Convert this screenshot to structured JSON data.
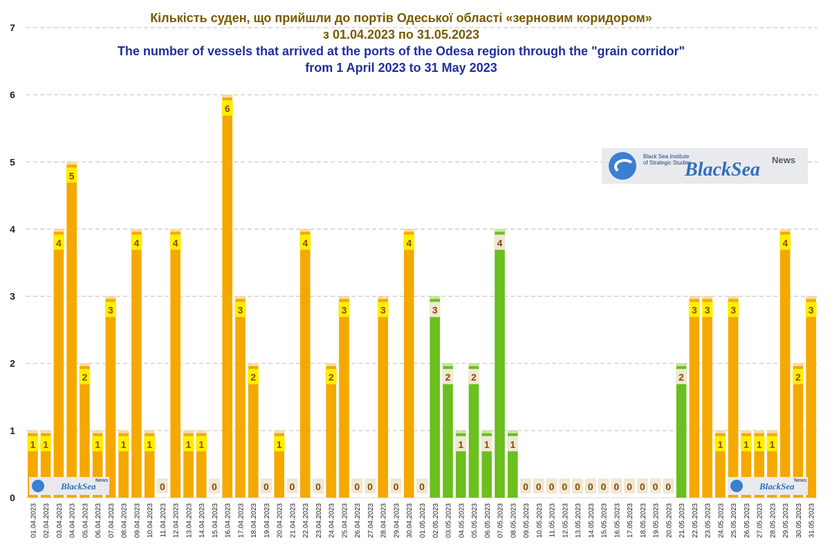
{
  "chart_data": {
    "type": "bar",
    "title_uk_line1": "Кількість суден, що прийшли до  портів Одеської області «зерновим коридором»",
    "title_uk_line2": "з 01.04.2023 по 31.05.2023",
    "title_en_line1": "The number of vessels that arrived at the ports of the Odesa region through the \"grain corridor\"",
    "title_en_line2": "from 1 April 2023 to 31 May 2023",
    "xlabel": "",
    "ylabel": "",
    "ylim": [
      0,
      7
    ],
    "yticks": [
      "0",
      "1",
      "2",
      "3",
      "4",
      "5",
      "6",
      "7"
    ],
    "grid": true,
    "categories": [
      "01.04.2023",
      "02.04.2023",
      "03.04.2023",
      "04.04.2023",
      "05.04.2023",
      "06.04.2023",
      "07.04.2023",
      "08.04.2023",
      "09.04.2023",
      "10.04.2023",
      "11.04.2023",
      "12.04.2023",
      "13.04.2023",
      "14.04.2023",
      "15.04.2023",
      "16.04.2023",
      "17.04.2023",
      "18.04.2023",
      "19.04.2023",
      "20.04.2023",
      "21.04.2023",
      "22.04.2023",
      "23.04.2023",
      "24.04.2023",
      "25.04.2023",
      "26.04.2023",
      "27.04.2023",
      "28.04.2023",
      "29.04.2023",
      "30.04.2023",
      "01.05.2023",
      "02.05.2023",
      "03.05.2023",
      "04.05.2023",
      "05.05.2023",
      "06.05.2023",
      "07.05.2023",
      "08.05.2023",
      "09.05.2023",
      "10.05.2023",
      "11.05.2023",
      "12.05.2023",
      "13.05.2023",
      "14.05.2023",
      "15.05.2023",
      "16.05.2023",
      "17.05.2023",
      "18.05.2023",
      "19.05.2023",
      "20.05.2023",
      "21.05.2023",
      "22.05.2023",
      "23.05.2023",
      "24.05.2023",
      "25.05.2023",
      "26.05.2023",
      "27.05.2023",
      "28.05.2023",
      "29.05.2023",
      "30.05.2023",
      "31.05.2023"
    ],
    "values": [
      1,
      1,
      4,
      5,
      2,
      1,
      3,
      1,
      4,
      1,
      0,
      4,
      1,
      1,
      0,
      6,
      3,
      2,
      0,
      1,
      0,
      4,
      0,
      2,
      3,
      0,
      0,
      3,
      0,
      4,
      0,
      3,
      2,
      1,
      2,
      1,
      4,
      1,
      0,
      0,
      0,
      0,
      0,
      0,
      0,
      0,
      0,
      0,
      0,
      0,
      2,
      3,
      3,
      1,
      3,
      1,
      1,
      1,
      4,
      2,
      3
    ],
    "bar_colors": [
      "orange",
      "orange",
      "orange",
      "orange",
      "orange",
      "orange",
      "orange",
      "orange",
      "orange",
      "orange",
      "orange",
      "orange",
      "orange",
      "orange",
      "orange",
      "orange",
      "orange",
      "orange",
      "orange",
      "orange",
      "orange",
      "orange",
      "orange",
      "orange",
      "orange",
      "orange",
      "orange",
      "orange",
      "orange",
      "orange",
      "green",
      "green",
      "green",
      "green",
      "green",
      "green",
      "green",
      "green",
      "green",
      "green",
      "green",
      "green",
      "green",
      "green",
      "green",
      "green",
      "green",
      "green",
      "green",
      "green",
      "green",
      "orange",
      "orange",
      "orange",
      "orange",
      "orange",
      "orange",
      "orange",
      "orange",
      "orange",
      "orange"
    ],
    "colors": {
      "orange": "#f5a800",
      "orange_cap": "#f8dca0",
      "green": "#6bbf1e",
      "green_cap": "#c7e59f",
      "label_orange_bg": "#ffee00",
      "label_green_bg": "#efe8d4",
      "label_text": "#8a4a00",
      "grid": "#bfbfbf",
      "axis_text": "#222222"
    }
  },
  "logo": {
    "institute": "Black Sea Institute of Strategic Studies",
    "name": "BlackSea",
    "news": "News"
  }
}
